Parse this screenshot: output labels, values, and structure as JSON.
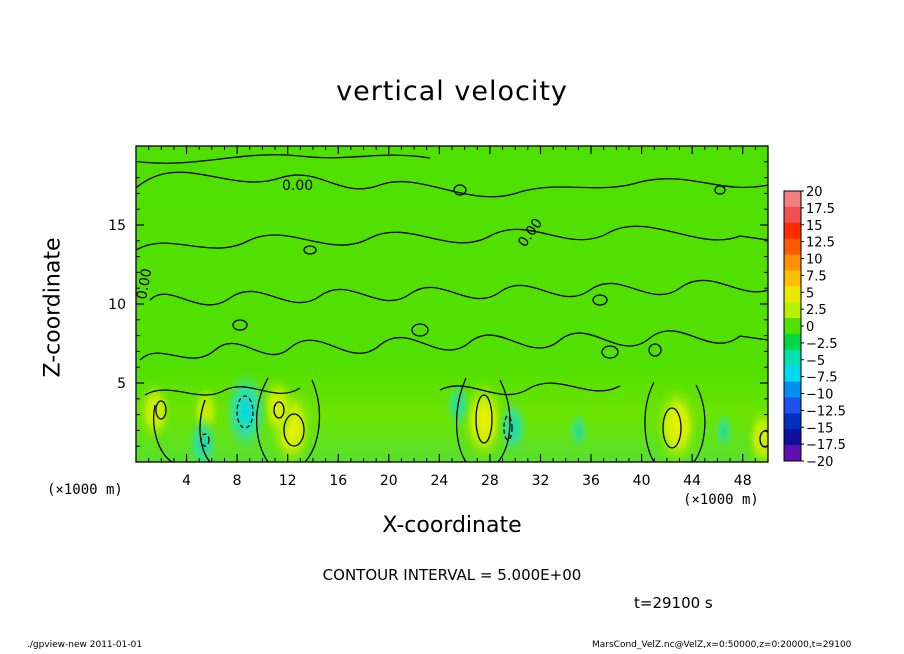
{
  "chart_data": {
    "type": "heatmap",
    "title": "vertical velocity",
    "xlabel": "X-coordinate",
    "ylabel": "Z-coordinate",
    "x_unit_label": "(×1000 m)",
    "y_unit_label": "(×1000 m)",
    "xlim": [
      0,
      50
    ],
    "ylim": [
      0,
      20
    ],
    "x_ticks": [
      "4",
      "8",
      "12",
      "16",
      "20",
      "24",
      "28",
      "32",
      "36",
      "40",
      "44",
      "48"
    ],
    "y_ticks": [
      "5",
      "10",
      "15"
    ],
    "contour_label": "0.00",
    "colorbar": {
      "labels": [
        "20",
        "17.5",
        "15",
        "12.5",
        "10",
        "7.5",
        "5",
        "2.5",
        "0",
        "−2.5",
        "−5",
        "−7.5",
        "−10",
        "−12.5",
        "−15",
        "−17.5",
        "−20"
      ],
      "colors": [
        "#f08080",
        "#f05050",
        "#ff2a00",
        "#ff5a00",
        "#ff9000",
        "#ffc000",
        "#e8e800",
        "#b8f000",
        "#50e000",
        "#00d848",
        "#00e0b0",
        "#00d8f0",
        "#0090f0",
        "#2050f0",
        "#0030c0",
        "#1010a0",
        "#6010b0"
      ]
    },
    "updrafts": [
      {
        "x": 1.5,
        "z": 3.2,
        "w": 4
      },
      {
        "x": 5.5,
        "z": 3.2,
        "w": 3
      },
      {
        "x": 12.3,
        "z": 2.2,
        "w": 6
      },
      {
        "x": 11.2,
        "z": 3.5,
        "w": 4
      },
      {
        "x": 27.5,
        "z": 2.6,
        "w": 6
      },
      {
        "x": 42.8,
        "z": 2.3,
        "w": 6
      },
      {
        "x": 49.6,
        "z": 1.5,
        "w": 4
      }
    ],
    "downdrafts": [
      {
        "x": 5.3,
        "z": 1.2,
        "w": -4
      },
      {
        "x": 8.7,
        "z": 3.2,
        "w": -7
      },
      {
        "x": 25.5,
        "z": 3.6,
        "w": -3
      },
      {
        "x": 29.8,
        "z": 2.2,
        "w": -4
      },
      {
        "x": 35.0,
        "z": 2.0,
        "w": -2
      },
      {
        "x": 46.5,
        "z": 2.0,
        "w": -2
      }
    ],
    "contour_interval_text": "CONTOUR INTERVAL = 5.000E+00",
    "time_text": "t=29100 s"
  },
  "footer": {
    "left": "./gpview-new  2011-01-01",
    "right": "MarsCond_VelZ.nc@VelZ,x=0:50000,z=0:20000,t=29100"
  }
}
